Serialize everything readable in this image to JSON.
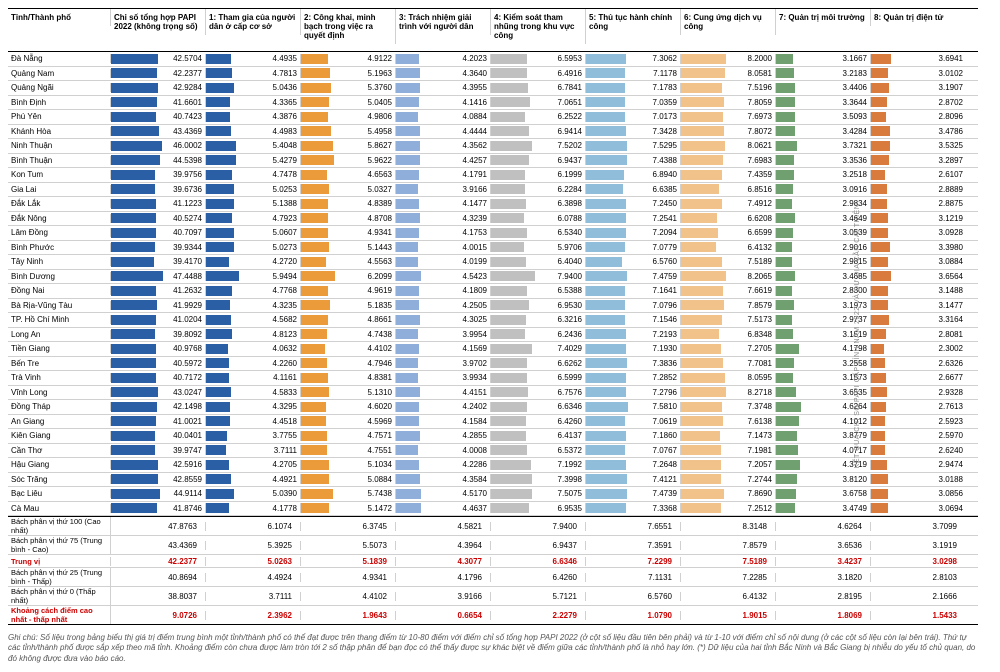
{
  "headers": [
    "Tỉnh/Thành phố",
    "Chỉ số tổng hợp PAPI 2022 (không trọng số)",
    "1: Tham gia của người dân ở cấp cơ sở",
    "2: Công khai, minh bạch trong việc ra quyết định",
    "3: Trách nhiệm giải trình với người dân",
    "4: Kiểm soát tham nhũng trong khu vực công",
    "5: Thủ tục hành chính công",
    "6: Cung ứng dịch vụ công",
    "7: Quản trị môi trường",
    "8: Quản trị điện tử"
  ],
  "colors": [
    "#2b5fa5",
    "#2b5fa5",
    "#ec9b3b",
    "#8faed9",
    "#c0c0c0",
    "#8fbdda",
    "#f2c28b",
    "#70a070",
    "#d97b3c"
  ],
  "mainMax": 50,
  "subMax": 10,
  "rows": [
    {
      "p": "Đà Nẵng",
      "v": [
        42.5704,
        4.4935,
        4.9122,
        4.2023,
        6.5953,
        7.3062,
        8.2,
        3.1667,
        3.6941
      ]
    },
    {
      "p": "Quảng Nam",
      "v": [
        42.2377,
        4.7813,
        5.1963,
        4.364,
        6.4916,
        7.1178,
        8.0581,
        3.2183,
        3.0102
      ]
    },
    {
      "p": "Quảng Ngãi",
      "v": [
        42.9284,
        5.0436,
        5.376,
        4.3955,
        6.7841,
        7.1783,
        7.5196,
        3.4406,
        3.1907
      ]
    },
    {
      "p": "Bình Định",
      "v": [
        41.6601,
        4.3365,
        5.0405,
        4.1416,
        7.0651,
        7.0359,
        7.8059,
        3.3644,
        2.8702
      ]
    },
    {
      "p": "Phú Yên",
      "v": [
        40.7423,
        4.3876,
        4.9806,
        4.0884,
        6.2522,
        7.0173,
        7.6973,
        3.5093,
        2.8096
      ]
    },
    {
      "p": "Khánh Hòa",
      "v": [
        43.4369,
        4.4983,
        5.4958,
        4.4444,
        6.9414,
        7.3428,
        7.8072,
        3.4284,
        3.4786
      ]
    },
    {
      "p": "Ninh Thuận",
      "v": [
        46.0002,
        5.4048,
        5.8627,
        4.3562,
        7.5202,
        7.5295,
        8.0621,
        3.7321,
        3.5325
      ]
    },
    {
      "p": "Bình Thuận",
      "v": [
        44.5398,
        5.4279,
        5.9622,
        4.4257,
        6.9437,
        7.4388,
        7.6983,
        3.3536,
        3.2897
      ]
    },
    {
      "p": "Kon Tum",
      "v": [
        39.9756,
        4.7478,
        4.6563,
        4.1791,
        6.1999,
        6.894,
        7.4359,
        3.2518,
        2.6107
      ]
    },
    {
      "p": "Gia Lai",
      "v": [
        39.6736,
        5.0253,
        5.0327,
        3.9166,
        6.2284,
        6.6385,
        6.8516,
        3.0916,
        2.8889
      ]
    },
    {
      "p": "Đắk Lắk",
      "v": [
        41.1223,
        5.1388,
        4.8389,
        4.1477,
        6.3898,
        7.245,
        7.4912,
        2.9834,
        2.8875
      ]
    },
    {
      "p": "Đắk Nông",
      "v": [
        40.5274,
        4.7923,
        4.8708,
        4.3239,
        6.0788,
        7.2541,
        6.6208,
        3.4649,
        3.1219
      ]
    },
    {
      "p": "Lâm Đồng",
      "v": [
        40.7097,
        5.0607,
        4.9341,
        4.1753,
        6.534,
        7.2094,
        6.6599,
        3.0539,
        3.0928
      ]
    },
    {
      "p": "Bình Phước",
      "v": [
        39.9344,
        5.0273,
        5.1443,
        4.0015,
        5.9706,
        7.0779,
        6.4132,
        2.9016,
        3.398
      ]
    },
    {
      "p": "Tây Ninh",
      "v": [
        39.417,
        4.272,
        4.5563,
        4.0199,
        6.404,
        6.576,
        7.5189,
        2.9815,
        3.0884
      ]
    },
    {
      "p": "Bình Dương",
      "v": [
        47.4488,
        5.9494,
        6.2099,
        4.5423,
        7.94,
        7.4759,
        8.2065,
        3.4685,
        3.6564
      ]
    },
    {
      "p": "Đồng Nai",
      "v": [
        41.2632,
        4.7768,
        4.9619,
        4.1809,
        6.5388,
        7.1641,
        7.6619,
        2.83,
        3.1488
      ]
    },
    {
      "p": "Bà Rịa-Vũng Tàu",
      "v": [
        41.9929,
        4.3235,
        5.1835,
        4.2505,
        6.953,
        7.0796,
        7.8579,
        3.1973,
        3.1477
      ]
    },
    {
      "p": "TP. Hồ Chí Minh",
      "v": [
        41.0204,
        4.5682,
        4.8661,
        4.3025,
        6.3216,
        7.1546,
        7.5173,
        2.9737,
        3.3164
      ]
    },
    {
      "p": "Long An",
      "v": [
        39.8092,
        4.8123,
        4.7438,
        3.9954,
        6.2436,
        7.2193,
        6.8348,
        3.1519,
        2.8081
      ]
    },
    {
      "p": "Tiền Giang",
      "v": [
        40.9768,
        4.0632,
        4.4102,
        4.1569,
        7.4029,
        7.193,
        7.2705,
        4.1798,
        2.3002
      ]
    },
    {
      "p": "Bến Tre",
      "v": [
        40.5972,
        4.226,
        4.7946,
        3.9702,
        6.6262,
        7.3836,
        7.7081,
        3.2558,
        2.6326
      ]
    },
    {
      "p": "Trà Vinh",
      "v": [
        40.7172,
        4.1161,
        4.8381,
        3.9934,
        6.5999,
        7.2852,
        8.0595,
        3.1573,
        2.6677
      ]
    },
    {
      "p": "Vĩnh Long",
      "v": [
        43.0247,
        4.5833,
        5.131,
        4.4151,
        6.7576,
        7.2796,
        8.2718,
        3.6535,
        2.9328
      ]
    },
    {
      "p": "Đồng Tháp",
      "v": [
        42.1498,
        4.3295,
        4.602,
        4.2402,
        6.6346,
        7.581,
        7.3748,
        4.6264,
        2.7613
      ]
    },
    {
      "p": "An Giang",
      "v": [
        41.0021,
        4.4518,
        4.5969,
        4.1584,
        6.426,
        7.0619,
        7.6138,
        4.1012,
        2.5923
      ]
    },
    {
      "p": "Kiên Giang",
      "v": [
        40.0401,
        3.7755,
        4.7571,
        4.2855,
        6.4137,
        7.186,
        7.1473,
        3.8779,
        2.597
      ]
    },
    {
      "p": "Cần Thơ",
      "v": [
        39.9747,
        3.7111,
        4.7551,
        4.0008,
        6.5372,
        7.0767,
        7.1981,
        4.0717,
        2.624
      ]
    },
    {
      "p": "Hậu Giang",
      "v": [
        42.5916,
        4.2705,
        5.1034,
        4.2286,
        7.1992,
        7.2648,
        7.2057,
        4.3719,
        2.9474
      ]
    },
    {
      "p": "Sóc Trăng",
      "v": [
        42.8559,
        4.4921,
        5.0884,
        4.3584,
        7.3998,
        7.4121,
        7.2744,
        3.812,
        3.0188
      ]
    },
    {
      "p": "Bạc Liêu",
      "v": [
        44.9114,
        5.039,
        5.7438,
        4.517,
        7.5075,
        7.4739,
        7.869,
        3.6758,
        3.0856
      ]
    },
    {
      "p": "Cà Mau",
      "v": [
        41.8746,
        4.1778,
        5.1472,
        4.4637,
        6.9535,
        7.3368,
        7.2512,
        3.4749,
        3.0694
      ]
    }
  ],
  "stats": [
    {
      "label": "Bách phân vị thứ 100 (Cao nhất)",
      "v": [
        47.8763,
        6.1074,
        6.3745,
        4.5821,
        7.94,
        7.6551,
        8.3148,
        4.6264,
        3.7099
      ],
      "red": false
    },
    {
      "label": "Bách phân vị thứ 75 (Trung bình - Cao)",
      "v": [
        43.4369,
        5.3925,
        5.5073,
        4.3964,
        6.9437,
        7.3591,
        7.8579,
        3.6536,
        3.1919
      ],
      "red": false
    },
    {
      "label": "Trung vị",
      "v": [
        42.2377,
        5.0263,
        5.1839,
        4.3077,
        6.6346,
        7.2299,
        7.5189,
        3.4237,
        3.0298
      ],
      "red": true
    },
    {
      "label": "Bách phân vị thứ 25 (Trung bình - Thấp)",
      "v": [
        40.8694,
        4.4924,
        4.9341,
        4.1796,
        6.426,
        7.1131,
        7.2285,
        3.182,
        2.8103
      ],
      "red": false
    },
    {
      "label": "Bách phân vị thứ 0 (Thấp nhất)",
      "v": [
        38.8037,
        3.7111,
        4.4102,
        3.9166,
        5.7121,
        6.576,
        6.4132,
        2.8195,
        2.1666
      ],
      "red": false
    },
    {
      "label": "Khoảng cách điểm cao nhất - thấp nhất",
      "v": [
        9.0726,
        2.3962,
        1.9643,
        0.6654,
        2.2279,
        1.079,
        1.9015,
        1.8069,
        1.5433
      ],
      "red": true
    }
  ],
  "footnote": "Ghi chú: Số liệu trong bảng biểu thị giá trị điểm trung bình một tỉnh/thành phố có thể đạt được trên thang điểm từ 10-80 điểm với điểm chỉ số tổng hợp PAPI 2022 (ở cột số liệu đầu tiên bên phải) và từ 1-10 với điểm chỉ số nội dung (ở các cột số liệu còn lại bên trái). Thứ tự các tỉnh/thành phố được sắp xếp theo mã tỉnh. Khoảng điểm còn chưa được làm tròn tới 2 số thập phân để bạn đọc có thể thấy được sự khác biệt về điểm giữa các tỉnh/thành phố là nhỏ hay lớn. (*) Dữ liệu của hai tỉnh Bắc Ninh và Bắc Giang bị nhiễu do yếu tố chủ quan, do đó không được đưa vào báo cáo.",
  "sideText": "KẾT QUẢ CHỈ SỐ PAPI CẤP TỈNH NĂM 2022 VÀ DƯ ĐỊA CẦN CẢI THIỆN"
}
